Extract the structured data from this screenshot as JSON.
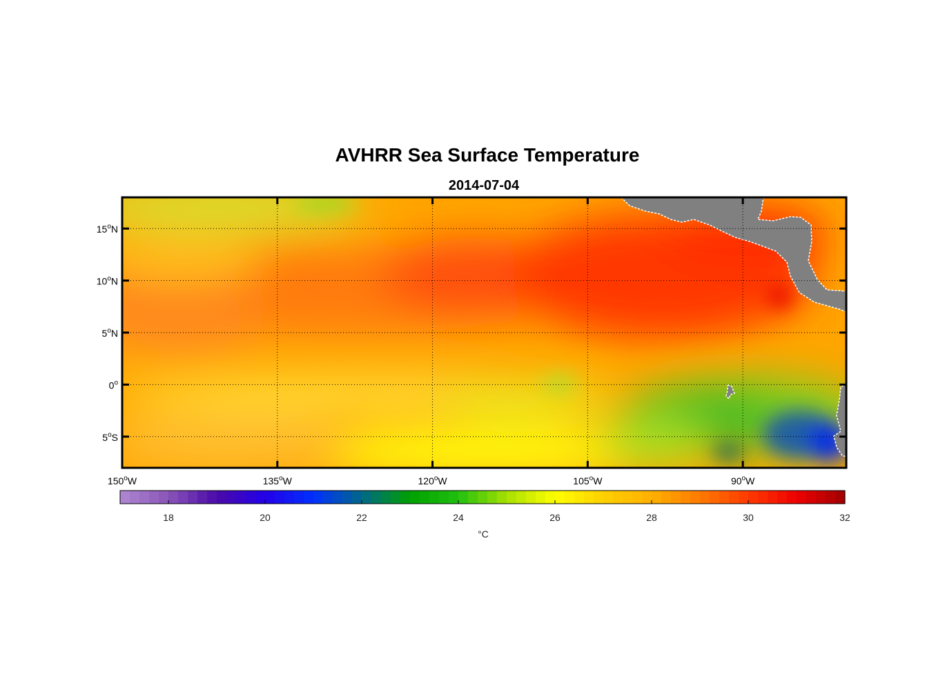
{
  "title": "AVHRR Sea Surface Temperature",
  "subtitle": "2014-07-04",
  "map": {
    "lon_range": [
      -150,
      -80
    ],
    "lat_range": [
      -8,
      18
    ],
    "lon_ticks": [
      {
        "value": -150,
        "num": "150",
        "hemi": "W"
      },
      {
        "value": -135,
        "num": "135",
        "hemi": "W"
      },
      {
        "value": -120,
        "num": "120",
        "hemi": "W"
      },
      {
        "value": -105,
        "num": "105",
        "hemi": "W"
      },
      {
        "value": -90,
        "num": "90",
        "hemi": "W"
      }
    ],
    "lat_ticks": [
      {
        "value": 15,
        "num": "15",
        "hemi": "N"
      },
      {
        "value": 10,
        "num": "10",
        "hemi": "N"
      },
      {
        "value": 5,
        "num": "5",
        "hemi": "N"
      },
      {
        "value": 0,
        "num": "0",
        "hemi": ""
      },
      {
        "value": -5,
        "num": "5",
        "hemi": "S"
      }
    ],
    "degree_symbol": "o",
    "land_color": "#808080"
  },
  "colorbar": {
    "min": 17,
    "max": 32,
    "ticks": [
      "18",
      "20",
      "22",
      "24",
      "26",
      "28",
      "30",
      "32"
    ],
    "unit": "°C",
    "colors": [
      {
        "v": 17,
        "c": "#b088d0"
      },
      {
        "v": 18,
        "c": "#8a55b8"
      },
      {
        "v": 19,
        "c": "#4a0aa8"
      },
      {
        "v": 20,
        "c": "#2200e8"
      },
      {
        "v": 21,
        "c": "#0030ff"
      },
      {
        "v": 22,
        "c": "#006888"
      },
      {
        "v": 23,
        "c": "#00a000"
      },
      {
        "v": 24,
        "c": "#20c010"
      },
      {
        "v": 25,
        "c": "#a8e000"
      },
      {
        "v": 26,
        "c": "#ffff00"
      },
      {
        "v": 27,
        "c": "#ffd000"
      },
      {
        "v": 28,
        "c": "#ffb000"
      },
      {
        "v": 29,
        "c": "#ff7a00"
      },
      {
        "v": 30,
        "c": "#ff3a00"
      },
      {
        "v": 31,
        "c": "#ee0000"
      },
      {
        "v": 32,
        "c": "#a00000"
      }
    ]
  }
}
